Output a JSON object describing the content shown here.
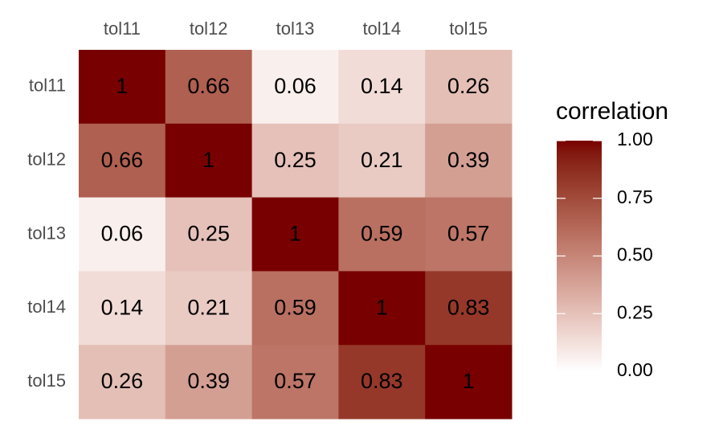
{
  "chart_data": {
    "type": "heatmap",
    "x_categories": [
      "tol11",
      "tol12",
      "tol13",
      "tol14",
      "tol15"
    ],
    "y_categories": [
      "tol11",
      "tol12",
      "tol13",
      "tol14",
      "tol15"
    ],
    "values": [
      [
        1,
        0.66,
        0.06,
        0.14,
        0.26
      ],
      [
        0.66,
        1,
        0.25,
        0.21,
        0.39
      ],
      [
        0.06,
        0.25,
        1,
        0.59,
        0.57
      ],
      [
        0.14,
        0.21,
        0.59,
        1,
        0.83
      ],
      [
        0.26,
        0.39,
        0.57,
        0.83,
        1
      ]
    ],
    "colorbar": {
      "title": "correlation",
      "lim": [
        0,
        1
      ],
      "ticks": [
        {
          "value": 0,
          "label": "0.00"
        },
        {
          "value": 0.25,
          "label": "0.25"
        },
        {
          "value": 0.5,
          "label": "0.50"
        },
        {
          "value": 0.75,
          "label": "0.75"
        },
        {
          "value": 1,
          "label": "1.00"
        }
      ],
      "colors": [
        "#ffffff",
        "#780000"
      ]
    }
  }
}
